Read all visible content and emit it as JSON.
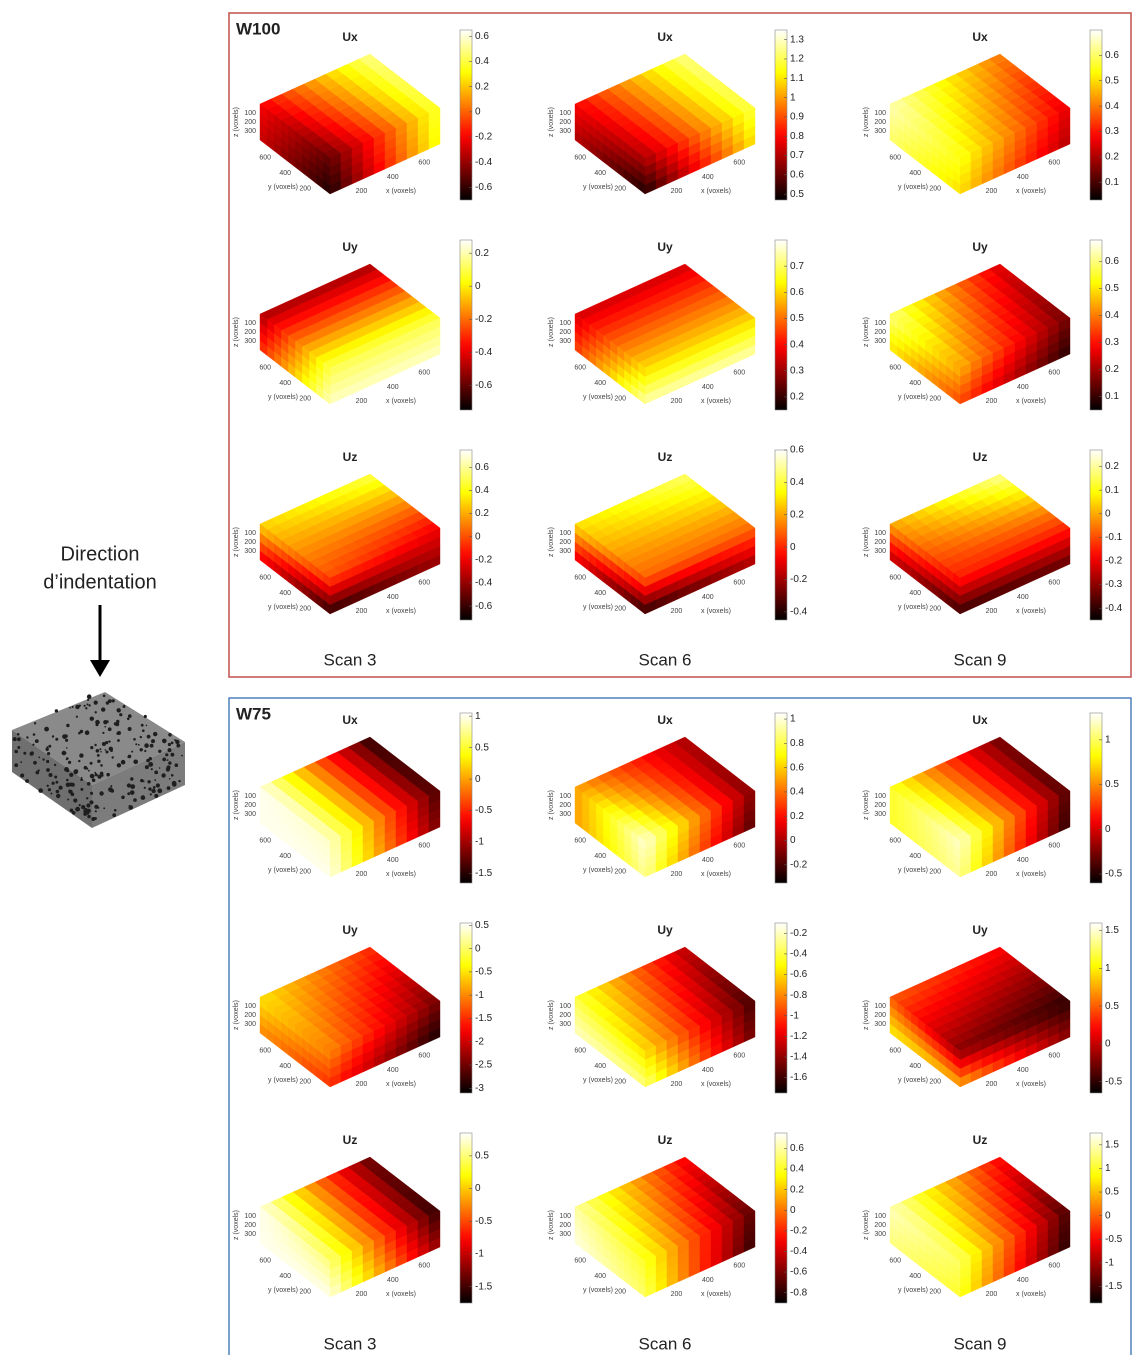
{
  "groups": [
    {
      "name": "W100",
      "color": "#c0504d"
    },
    {
      "name": "W75",
      "color": "#4f81bd"
    }
  ],
  "scan_labels": [
    "Scan 3",
    "Scan 6",
    "Scan 9"
  ],
  "direction_label": [
    "Direction",
    "d’indentation"
  ],
  "axes": {
    "x_label": "x (voxels)",
    "y_label": "y (voxels)",
    "z_label": "z (voxels)",
    "xlim": [
      50,
      750
    ],
    "ylim": [
      50,
      750
    ],
    "zlim": [
      0,
      400
    ],
    "xticks": [
      200,
      400,
      600
    ],
    "yticks": [
      600,
      400,
      200
    ],
    "zticks": [
      100,
      200,
      300
    ]
  },
  "chart_data": [
    {
      "type": "cube",
      "title": "Ux",
      "colormap": "hot",
      "clim": [
        -0.7,
        0.65
      ],
      "cticks": [
        -0.6,
        -0.4,
        -0.2,
        0,
        0.2,
        0.4,
        0.6
      ],
      "corners": [
        -0.5,
        0.4,
        -0.2,
        0.5,
        -0.65,
        0.35,
        -0.3,
        0.45
      ]
    },
    {
      "type": "cube",
      "title": "Ux",
      "colormap": "hot",
      "clim": [
        0.47,
        1.35
      ],
      "cticks": [
        0.5,
        0.6,
        0.7,
        0.8,
        0.9,
        1,
        1.1,
        1.2,
        1.3
      ],
      "corners": [
        0.7,
        1.2,
        0.8,
        1.25,
        0.5,
        1.1,
        0.7,
        1.2
      ]
    },
    {
      "type": "cube",
      "title": "Ux",
      "colormap": "hot",
      "clim": [
        0.03,
        0.7
      ],
      "cticks": [
        0.1,
        0.2,
        0.3,
        0.4,
        0.5,
        0.6
      ],
      "corners": [
        0.55,
        0.25,
        0.65,
        0.4,
        0.5,
        0.2,
        0.6,
        0.35
      ]
    },
    {
      "type": "cube",
      "title": "Uy",
      "colormap": "hot",
      "clim": [
        -0.75,
        0.28
      ],
      "cticks": [
        -0.6,
        -0.4,
        -0.2,
        0,
        0.2
      ],
      "corners": [
        0.1,
        0.1,
        -0.5,
        -0.5,
        0.22,
        0.22,
        -0.3,
        -0.3
      ]
    },
    {
      "type": "cube",
      "title": "Uy",
      "colormap": "hot",
      "clim": [
        0.15,
        0.8
      ],
      "cticks": [
        0.2,
        0.3,
        0.4,
        0.5,
        0.6,
        0.7
      ],
      "corners": [
        0.6,
        0.6,
        0.35,
        0.35,
        0.75,
        0.75,
        0.45,
        0.45
      ]
    },
    {
      "type": "cube",
      "title": "Uy",
      "colormap": "hot",
      "clim": [
        0.05,
        0.68
      ],
      "cticks": [
        0.1,
        0.2,
        0.3,
        0.4,
        0.5,
        0.6
      ],
      "corners": [
        0.45,
        0.15,
        0.6,
        0.25,
        0.35,
        0.08,
        0.5,
        0.15
      ]
    },
    {
      "type": "cube",
      "title": "Uz",
      "colormap": "hot",
      "clim": [
        -0.72,
        0.75
      ],
      "cticks": [
        -0.6,
        -0.4,
        -0.2,
        0,
        0.2,
        0.4,
        0.6
      ],
      "corners": [
        0,
        -0.2,
        0.3,
        0.5,
        -0.65,
        -0.4,
        -0.2,
        0.1
      ]
    },
    {
      "type": "cube",
      "title": "Uz",
      "colormap": "hot",
      "clim": [
        -0.45,
        0.6
      ],
      "cticks": [
        -0.4,
        -0.2,
        0,
        0.2,
        0.4,
        0.6
      ],
      "corners": [
        0.1,
        0.1,
        0.3,
        0.45,
        -0.4,
        -0.2,
        -0.1,
        0.1
      ]
    },
    {
      "type": "cube",
      "title": "Uz",
      "colormap": "hot",
      "clim": [
        -0.45,
        0.27
      ],
      "cticks": [
        -0.4,
        -0.3,
        -0.2,
        -0.1,
        0,
        0.1,
        0.2
      ],
      "corners": [
        -0.15,
        -0.15,
        0,
        0.2,
        -0.4,
        -0.35,
        -0.25,
        -0.1
      ]
    },
    {
      "type": "cube",
      "title": "Ux",
      "colormap": "hot",
      "clim": [
        -1.65,
        1.05
      ],
      "cticks": [
        -1.5,
        -1,
        -0.5,
        0,
        0.5,
        1
      ],
      "corners": [
        0.9,
        -1.4,
        1,
        -1.5,
        1,
        -1.2,
        1,
        -1.3
      ]
    },
    {
      "type": "cube",
      "title": "Ux",
      "colormap": "hot",
      "clim": [
        -0.35,
        1.05
      ],
      "cticks": [
        -0.2,
        0,
        0.2,
        0.4,
        0.6,
        0.8,
        1
      ],
      "corners": [
        1,
        -0.1,
        0.5,
        0,
        0.9,
        -0.2,
        0.5,
        -0.1
      ]
    },
    {
      "type": "cube",
      "title": "Ux",
      "colormap": "hot",
      "clim": [
        -0.6,
        1.3
      ],
      "cticks": [
        -0.5,
        0,
        0.5,
        1
      ],
      "corners": [
        1.2,
        -0.4,
        0.9,
        -0.3,
        1.1,
        -0.5,
        0.9,
        -0.4
      ]
    },
    {
      "type": "cube",
      "title": "Uy",
      "colormap": "hot",
      "clim": [
        -3.1,
        0.55
      ],
      "cticks": [
        -3,
        -2.5,
        -2,
        -1.5,
        -1,
        -0.5,
        0,
        0.5
      ],
      "corners": [
        -1,
        -2.5,
        -0.5,
        -1.5,
        -1.5,
        -3,
        -1,
        -2.8
      ]
    },
    {
      "type": "cube",
      "title": "Uy",
      "colormap": "hot",
      "clim": [
        -1.75,
        -0.1
      ],
      "cticks": [
        -1.6,
        -1.4,
        -1.2,
        -1,
        -0.8,
        -0.6,
        -0.4,
        -0.2
      ],
      "corners": [
        -0.6,
        -1.6,
        -0.4,
        -1.3,
        -0.3,
        -1.5,
        -0.2,
        -1.2
      ]
    },
    {
      "type": "cube",
      "title": "Uy",
      "colormap": "hot",
      "clim": [
        -0.65,
        1.6
      ],
      "cticks": [
        -0.5,
        0,
        0.5,
        1,
        1.5
      ],
      "corners": [
        -0.2,
        -0.5,
        0.5,
        0.2,
        0.8,
        -0.2,
        1,
        0.2
      ]
    },
    {
      "type": "cube",
      "title": "Uz",
      "colormap": "hot",
      "clim": [
        -1.75,
        0.85
      ],
      "cticks": [
        -1.5,
        -1,
        -0.5,
        0,
        0.5
      ],
      "corners": [
        0.5,
        -1.6,
        0.8,
        -1.4,
        0.8,
        -1.2,
        0.8,
        -1.3
      ]
    },
    {
      "type": "cube",
      "title": "Uz",
      "colormap": "hot",
      "clim": [
        -0.9,
        0.75
      ],
      "cticks": [
        -0.8,
        -0.6,
        -0.4,
        -0.2,
        0,
        0.2,
        0.4,
        0.6
      ],
      "corners": [
        0.4,
        -0.7,
        0.6,
        -0.3,
        0.5,
        -0.8,
        0.7,
        -0.4
      ]
    },
    {
      "type": "cube",
      "title": "Uz",
      "colormap": "hot",
      "clim": [
        -1.85,
        1.75
      ],
      "cticks": [
        -1.5,
        -1,
        -0.5,
        0,
        0.5,
        1,
        1.5
      ],
      "corners": [
        1.2,
        -1.5,
        1.5,
        -0.5,
        1,
        -1.7,
        1.3,
        -1
      ]
    }
  ]
}
